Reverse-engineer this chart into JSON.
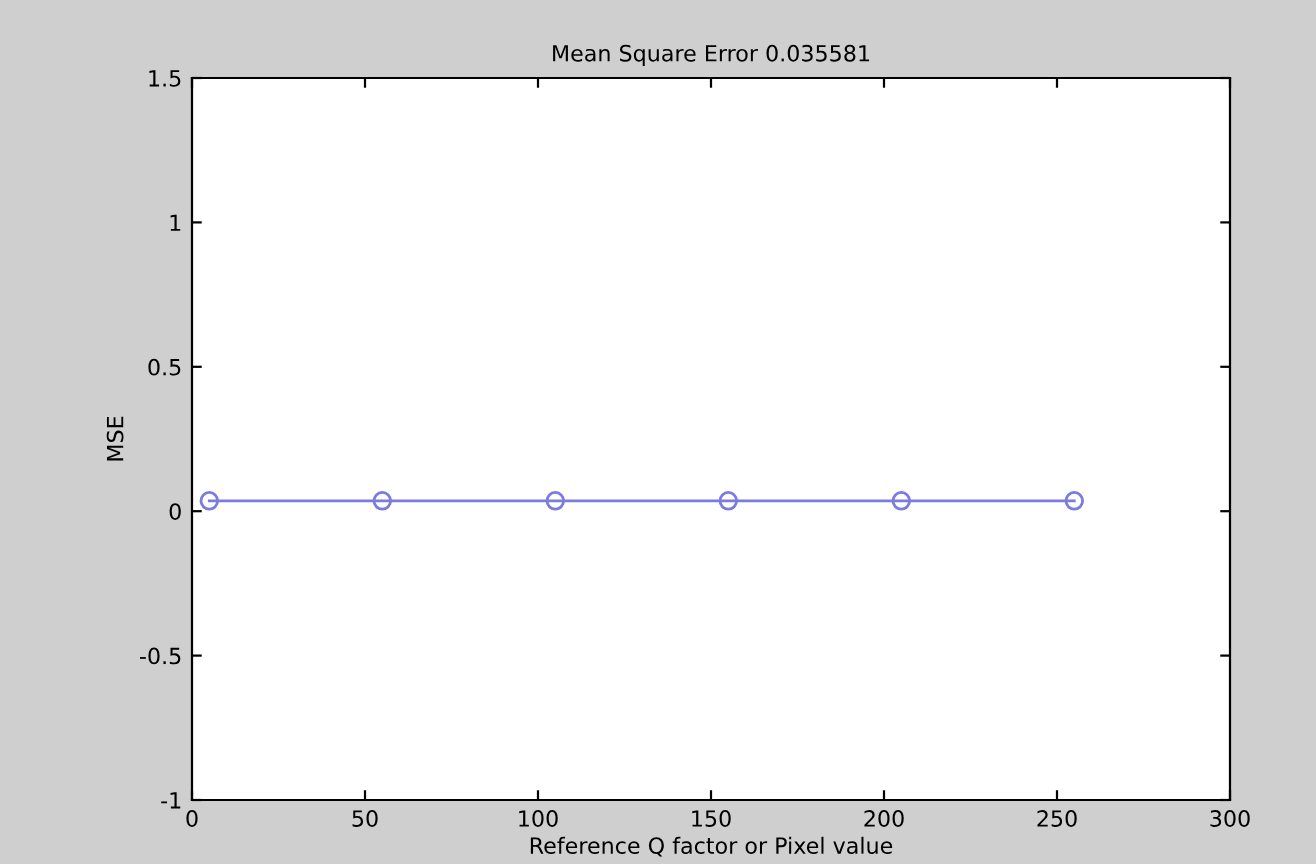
{
  "chart_data": {
    "type": "line",
    "title": "Mean Square Error 0.035581",
    "xlabel": "Reference Q factor or Pixel value",
    "ylabel": "MSE",
    "x": [
      5,
      55,
      105,
      155,
      205,
      255
    ],
    "series": [
      {
        "color": "#7b7be0",
        "values": [
          0.036,
          0.036,
          0.036,
          0.036,
          0.036,
          0.036
        ]
      }
    ],
    "xlim": [
      0,
      300
    ],
    "xticks": [
      0,
      50,
      100,
      150,
      200,
      250,
      300
    ],
    "ylim": [
      -1,
      1.5
    ],
    "yticks": [
      -1,
      -0.5,
      0,
      0.5,
      1,
      1.5
    ],
    "grid": false,
    "legend": false,
    "marker": "circle",
    "line_style": "solid"
  }
}
